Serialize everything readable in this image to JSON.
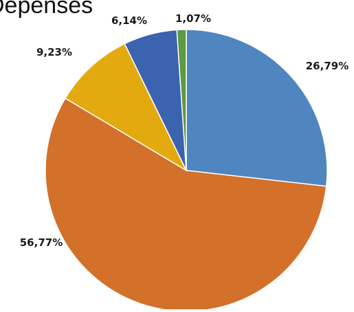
{
  "chart_data": {
    "type": "pie",
    "title": "Depenses",
    "start_angle_deg": 0,
    "direction": "clockwise",
    "slices": [
      {
        "value": 26.79,
        "label": "26,79%",
        "color": "#4f86c0"
      },
      {
        "value": 56.77,
        "label": "56,77%",
        "color": "#d3702a"
      },
      {
        "value": 9.23,
        "label": "9,23%",
        "color": "#e3aa10"
      },
      {
        "value": 6.14,
        "label": "6,14%",
        "color": "#3b63b0"
      },
      {
        "value": 1.07,
        "label": "1,07%",
        "color": "#5e9a3f"
      }
    ]
  }
}
